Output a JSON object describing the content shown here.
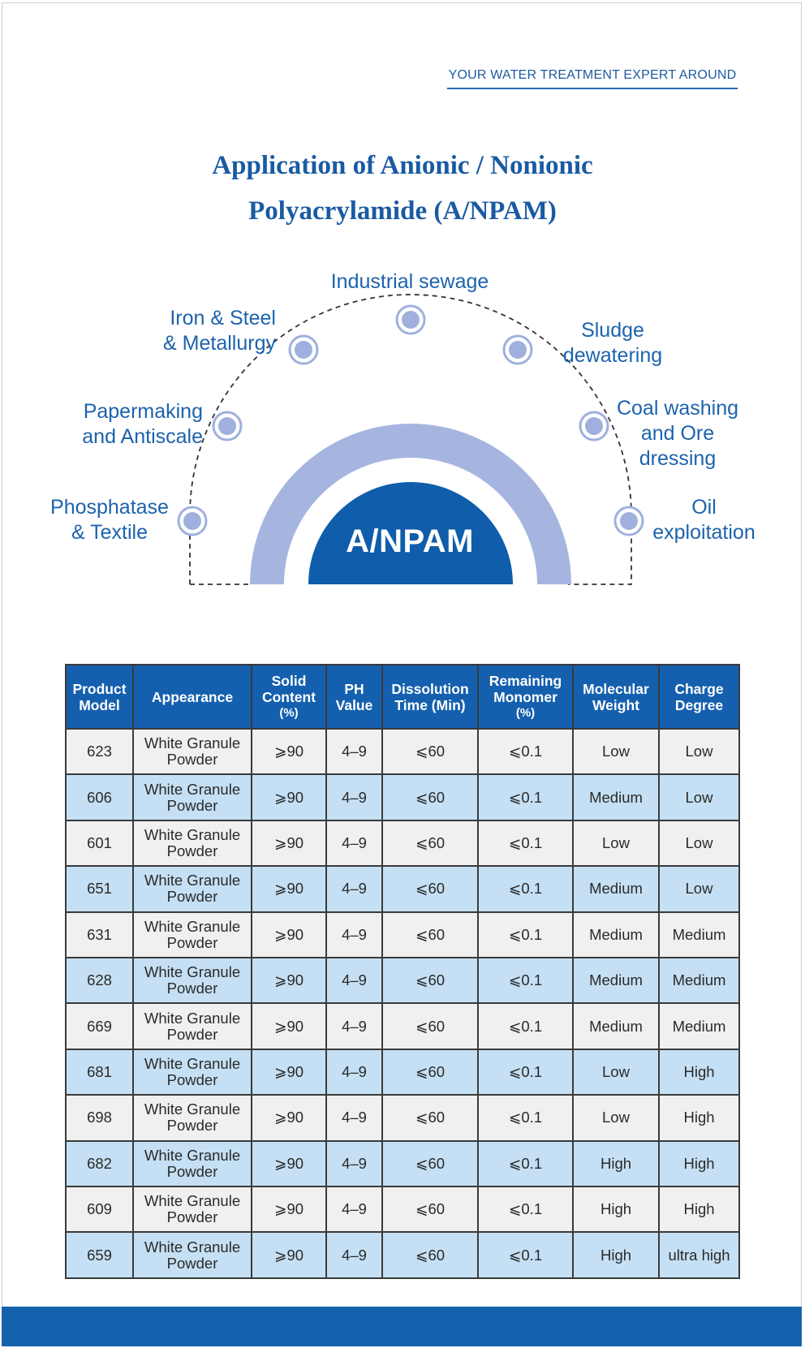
{
  "header": {
    "tagline": "YOUR WATER TREATMENT EXPERT AROUND"
  },
  "title": {
    "line1": "Application of Anionic / Nonionic",
    "line2": "Polyacrylamide (A/NPAM)"
  },
  "diagram": {
    "center": "A/NPAM",
    "applications": {
      "phosphatase": "Phosphatase\n& Textile",
      "papermaking": "Papermaking\nand Antiscale",
      "iron_steel": "Iron & Steel\n& Metallurgy",
      "industrial_sewage": "Industrial sewage",
      "sludge": "Sludge\ndewatering",
      "coal": "Coal washing\nand  Ore\ndressing",
      "oil": "Oil\nexploitation"
    }
  },
  "table": {
    "headers": {
      "model": [
        "Product",
        "Model"
      ],
      "appearance": [
        "Appearance"
      ],
      "solid": [
        "Solid",
        "Content",
        "(%)"
      ],
      "ph": [
        "PH",
        "Value"
      ],
      "dissolution": [
        "Dissolution",
        "Time (Min)"
      ],
      "monomer": [
        "Remaining",
        "Monomer",
        "(%)"
      ],
      "mw": [
        "Molecular",
        "Weight"
      ],
      "charge": [
        "Charge",
        "Degree"
      ]
    },
    "rows": [
      {
        "model": "623",
        "appearance": [
          "White Granule",
          "Powder"
        ],
        "solid": "⩾90",
        "ph": "4–9",
        "dissolution": "⩽60",
        "monomer": "⩽0.1",
        "mw": "Low",
        "charge": "Low"
      },
      {
        "model": "606",
        "appearance": [
          "White Granule",
          "Powder"
        ],
        "solid": "⩾90",
        "ph": "4–9",
        "dissolution": "⩽60",
        "monomer": "⩽0.1",
        "mw": "Medium",
        "charge": "Low"
      },
      {
        "model": "601",
        "appearance": [
          "White Granule",
          "Powder"
        ],
        "solid": "⩾90",
        "ph": "4–9",
        "dissolution": "⩽60",
        "monomer": "⩽0.1",
        "mw": "Low",
        "charge": "Low"
      },
      {
        "model": "651",
        "appearance": [
          "White Granule",
          "Powder"
        ],
        "solid": "⩾90",
        "ph": "4–9",
        "dissolution": "⩽60",
        "monomer": "⩽0.1",
        "mw": "Medium",
        "charge": "Low"
      },
      {
        "model": "631",
        "appearance": [
          "White Granule",
          "Powder"
        ],
        "solid": "⩾90",
        "ph": "4–9",
        "dissolution": "⩽60",
        "monomer": "⩽0.1",
        "mw": "Medium",
        "charge": "Medium"
      },
      {
        "model": "628",
        "appearance": [
          "White Granule",
          "Powder"
        ],
        "solid": "⩾90",
        "ph": "4–9",
        "dissolution": "⩽60",
        "monomer": "⩽0.1",
        "mw": "Medium",
        "charge": "Medium"
      },
      {
        "model": "669",
        "appearance": [
          "White Granule",
          "Powder"
        ],
        "solid": "⩾90",
        "ph": "4–9",
        "dissolution": "⩽60",
        "monomer": "⩽0.1",
        "mw": "Medium",
        "charge": "Medium"
      },
      {
        "model": "681",
        "appearance": [
          "White Granule",
          "Powder"
        ],
        "solid": "⩾90",
        "ph": "4–9",
        "dissolution": "⩽60",
        "monomer": "⩽0.1",
        "mw": "Low",
        "charge": "High"
      },
      {
        "model": "698",
        "appearance": [
          "White Granule",
          "Powder"
        ],
        "solid": "⩾90",
        "ph": "4–9",
        "dissolution": "⩽60",
        "monomer": "⩽0.1",
        "mw": "Low",
        "charge": "High"
      },
      {
        "model": "682",
        "appearance": [
          "White Granule",
          "Powder"
        ],
        "solid": "⩾90",
        "ph": "4–9",
        "dissolution": "⩽60",
        "monomer": "⩽0.1",
        "mw": "High",
        "charge": "High"
      },
      {
        "model": "609",
        "appearance": [
          "White Granule",
          "Powder"
        ],
        "solid": "⩾90",
        "ph": "4–9",
        "dissolution": "⩽60",
        "monomer": "⩽0.1",
        "mw": "High",
        "charge": "High"
      },
      {
        "model": "659",
        "appearance": [
          "White Granule",
          "Powder"
        ],
        "solid": "⩾90",
        "ph": "4–9",
        "dissolution": "⩽60",
        "monomer": "⩽0.1",
        "mw": "High",
        "charge": "ultra high"
      }
    ]
  },
  "colors": {
    "brand_blue": "#1462ad",
    "title_blue": "#1a5aa3",
    "arc_lavender": "#a6b5e0",
    "row_gray": "#f0f0f0",
    "row_blue": "#c5e0f4"
  }
}
